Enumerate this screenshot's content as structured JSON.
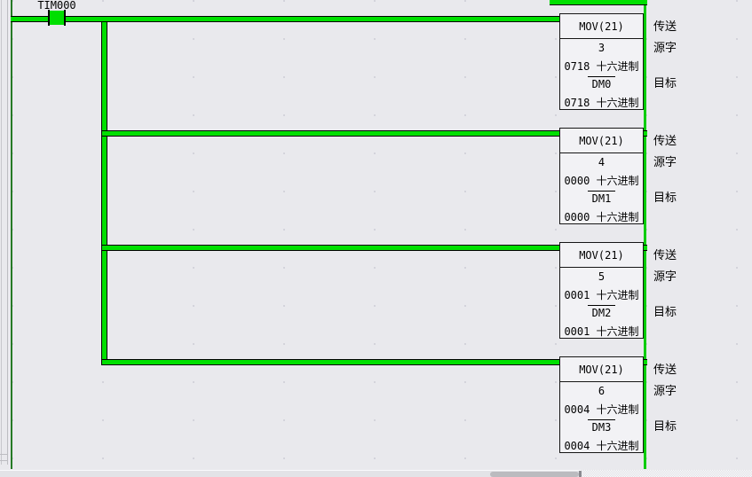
{
  "app": {
    "view": "plc-ladder-diagram"
  },
  "diagram": {
    "contact": {
      "label": "TIM000"
    },
    "blocks": [
      {
        "mnemonic": "MOV(21)",
        "source_operand": "3",
        "source_value": "0718 十六进制",
        "dest_operand": "DM0",
        "dest_value": "0718 十六进制",
        "ann_function": "传送",
        "ann_source": "源字",
        "ann_dest": "目标"
      },
      {
        "mnemonic": "MOV(21)",
        "source_operand": "4",
        "source_value": "0000 十六进制",
        "dest_operand": "DM1",
        "dest_value": "0000 十六进制",
        "ann_function": "传送",
        "ann_source": "源字",
        "ann_dest": "目标"
      },
      {
        "mnemonic": "MOV(21)",
        "source_operand": "5",
        "source_value": "0001 十六进制",
        "dest_operand": "DM2",
        "dest_value": "0001 十六进制",
        "ann_function": "传送",
        "ann_source": "源字",
        "ann_dest": "目标"
      },
      {
        "mnemonic": "MOV(21)",
        "source_operand": "6",
        "source_value": "0004 十六进制",
        "dest_operand": "DM3",
        "dest_value": "0004 十六进制",
        "ann_function": "传送",
        "ann_source": "源字",
        "ann_dest": "目标"
      }
    ]
  },
  "colors": {
    "background": "#e9e9ed",
    "power_flow_green": "#00df00",
    "left_rail_green": "#267a26",
    "right_rail_green": "#00cc00",
    "block_fill": "#f2f2f5"
  }
}
